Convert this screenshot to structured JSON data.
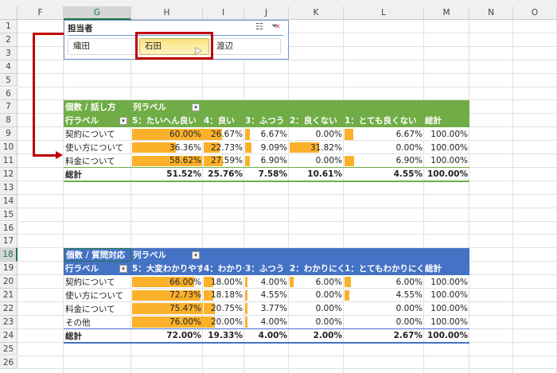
{
  "columns": [
    "F",
    "G",
    "H",
    "I",
    "J",
    "K",
    "L",
    "M",
    "N",
    "O"
  ],
  "selected_column": "G",
  "rows": [
    "1",
    "2",
    "3",
    "4",
    "5",
    "6",
    "7",
    "8",
    "9",
    "10",
    "11",
    "12",
    "13",
    "14",
    "15",
    "16",
    "17",
    "18",
    "19",
    "20",
    "21",
    "22",
    "23",
    "24",
    "25",
    "26"
  ],
  "selected_row": "18",
  "slicer": {
    "title": "担当者",
    "items": [
      "織田",
      "石田",
      "渡辺"
    ],
    "selected": "石田",
    "multi_select_icon": "multi-select-icon",
    "clear_filter_icon": "clear-filter-icon"
  },
  "pivot1": {
    "color": "#70ad47",
    "corner": "個数 / 話し方",
    "col_label": "列ラベル",
    "row_label": "行ラベル",
    "headers": [
      "5：たいへん良い",
      "4：良い",
      "3：ふつう",
      "2：良くない",
      "1：とても良くない",
      "総計"
    ],
    "rows": [
      {
        "label": "契約について",
        "values": [
          "60.00%",
          "26.67%",
          "6.67%",
          "0.00%",
          "6.67%",
          "100.00%"
        ],
        "nums": [
          60,
          26.67,
          6.67,
          0,
          6.67
        ]
      },
      {
        "label": "使い方について",
        "values": [
          "36.36%",
          "22.73%",
          "9.09%",
          "31.82%",
          "0.00%",
          "100.00%"
        ],
        "nums": [
          36.36,
          22.73,
          9.09,
          31.82,
          0
        ]
      },
      {
        "label": "料金について",
        "values": [
          "58.62%",
          "27.59%",
          "6.90%",
          "0.00%",
          "6.90%",
          "100.00%"
        ],
        "nums": [
          58.62,
          27.59,
          6.9,
          0,
          6.9
        ]
      }
    ],
    "total": {
      "label": "総計",
      "values": [
        "51.52%",
        "25.76%",
        "7.58%",
        "10.61%",
        "4.55%",
        "100.00%"
      ]
    }
  },
  "pivot2": {
    "color": "#4472c4",
    "corner": "個数 / 質問対応",
    "col_label": "列ラベル",
    "row_label": "行ラベル",
    "headers": [
      "5：大変わかりやすい",
      "4：わかりやすい",
      "3：ふつう",
      "2：わかりにくい",
      "1：とてもわかりにくい",
      "総計"
    ],
    "rows": [
      {
        "label": "契約について",
        "values": [
          "66.00%",
          "18.00%",
          "4.00%",
          "6.00%",
          "6.00%",
          "100.00%"
        ],
        "nums": [
          66,
          18,
          4,
          6,
          6
        ]
      },
      {
        "label": "使い方について",
        "values": [
          "72.73%",
          "18.18%",
          "4.55%",
          "0.00%",
          "4.55%",
          "100.00%"
        ],
        "nums": [
          72.73,
          18.18,
          4.55,
          0,
          4.55
        ]
      },
      {
        "label": "料金について",
        "values": [
          "75.47%",
          "20.75%",
          "3.77%",
          "0.00%",
          "0.00%",
          "100.00%"
        ],
        "nums": [
          75.47,
          20.75,
          3.77,
          0,
          0
        ]
      },
      {
        "label": "その他",
        "values": [
          "76.00%",
          "20.00%",
          "4.00%",
          "0.00%",
          "0.00%",
          "100.00%"
        ],
        "nums": [
          76,
          20,
          4,
          0,
          0
        ]
      }
    ],
    "total": {
      "label": "総計",
      "values": [
        "72.00%",
        "19.33%",
        "4.00%",
        "2.00%",
        "2.67%",
        "100.00%"
      ]
    }
  },
  "databar_color": "#fbb12a",
  "annotation_color": "#c00000"
}
